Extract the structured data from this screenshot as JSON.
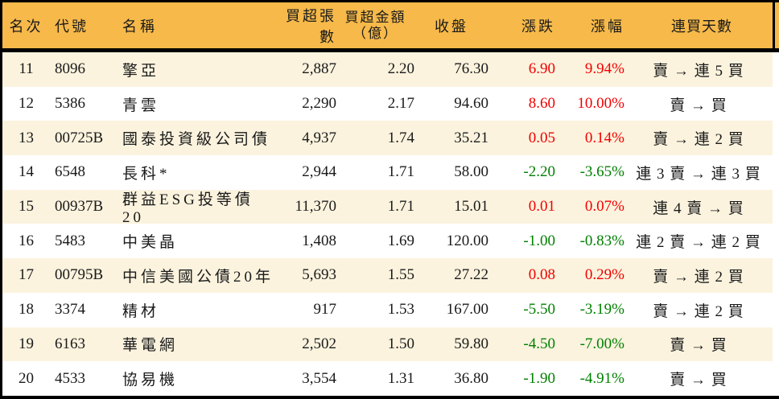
{
  "colors": {
    "header_bg": "#f6b94a",
    "row_alt_bg": "#fbf3de",
    "row_bg": "#ffffff",
    "up": "#f20000",
    "down": "#008000",
    "text": "#1a1a1a",
    "border": "#000000"
  },
  "table": {
    "columns": [
      {
        "key": "rank",
        "label": "名次"
      },
      {
        "key": "code",
        "label": "代號"
      },
      {
        "key": "name",
        "label": "名稱"
      },
      {
        "key": "volume",
        "label": "買超張數"
      },
      {
        "key": "amount",
        "label": "買超金額",
        "label2": "（億）"
      },
      {
        "key": "close",
        "label": "收盤"
      },
      {
        "key": "change",
        "label": "漲跌"
      },
      {
        "key": "pct",
        "label": "漲幅"
      },
      {
        "key": "days",
        "label": "連買天數"
      }
    ],
    "rows": [
      {
        "rank": "11",
        "code": "8096",
        "name": "擎亞",
        "volume": "2,887",
        "amount": "2.20",
        "close": "76.30",
        "change": "6.90",
        "pct": "9.94%",
        "days": "賣 → 連 5 買",
        "trend": "up"
      },
      {
        "rank": "12",
        "code": "5386",
        "name": "青雲",
        "volume": "2,290",
        "amount": "2.17",
        "close": "94.60",
        "change": "8.60",
        "pct": "10.00%",
        "days": "賣 → 買",
        "trend": "up"
      },
      {
        "rank": "13",
        "code": "00725B",
        "name": "國泰投資級公司債",
        "volume": "4,937",
        "amount": "1.74",
        "close": "35.21",
        "change": "0.05",
        "pct": "0.14%",
        "days": "賣 → 連 2 買",
        "trend": "up"
      },
      {
        "rank": "14",
        "code": "6548",
        "name": "長科*",
        "volume": "2,944",
        "amount": "1.71",
        "close": "58.00",
        "change": "-2.20",
        "pct": "-3.65%",
        "days": "連 3 賣 → 連 3 買",
        "trend": "down"
      },
      {
        "rank": "15",
        "code": "00937B",
        "name": "群益ESG投等債20",
        "volume": "11,370",
        "amount": "1.71",
        "close": "15.01",
        "change": "0.01",
        "pct": "0.07%",
        "days": "連 4 賣 → 買",
        "trend": "up"
      },
      {
        "rank": "16",
        "code": "5483",
        "name": "中美晶",
        "volume": "1,408",
        "amount": "1.69",
        "close": "120.00",
        "change": "-1.00",
        "pct": "-0.83%",
        "days": "連 2 賣 → 連 2 買",
        "trend": "down"
      },
      {
        "rank": "17",
        "code": "00795B",
        "name": "中信美國公債20年",
        "volume": "5,693",
        "amount": "1.55",
        "close": "27.22",
        "change": "0.08",
        "pct": "0.29%",
        "days": "賣 → 連 2 買",
        "trend": "up"
      },
      {
        "rank": "18",
        "code": "3374",
        "name": "精材",
        "volume": "917",
        "amount": "1.53",
        "close": "167.00",
        "change": "-5.50",
        "pct": "-3.19%",
        "days": "賣 → 連 2 買",
        "trend": "down"
      },
      {
        "rank": "19",
        "code": "6163",
        "name": "華電網",
        "volume": "2,502",
        "amount": "1.50",
        "close": "59.80",
        "change": "-4.50",
        "pct": "-7.00%",
        "days": "賣 → 買",
        "trend": "down"
      },
      {
        "rank": "20",
        "code": "4533",
        "name": "協易機",
        "volume": "3,554",
        "amount": "1.31",
        "close": "36.80",
        "change": "-1.90",
        "pct": "-4.91%",
        "days": "賣 → 買",
        "trend": "down"
      }
    ]
  }
}
